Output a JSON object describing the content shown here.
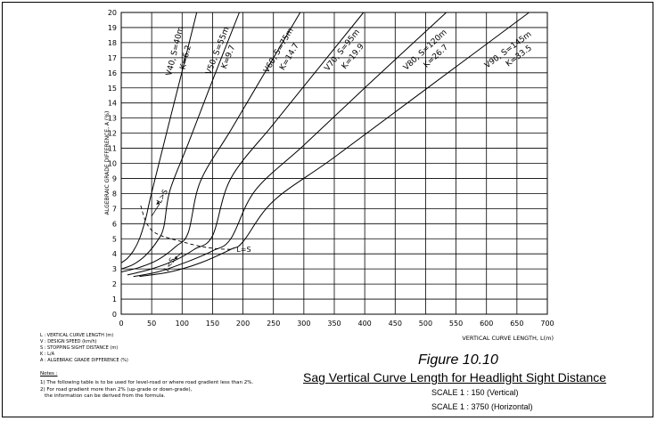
{
  "chart_data": {
    "type": "line",
    "xlabel": "VERTICAL CURVE LENGTH, L(m)",
    "ylabel": "ALGEBRAIC GRADE DIFFERENCE, A (%)",
    "xlim": [
      0,
      700
    ],
    "ylim": [
      0,
      20
    ],
    "xticks": [
      0,
      50,
      100,
      150,
      200,
      250,
      300,
      350,
      400,
      450,
      500,
      550,
      600,
      650,
      700
    ],
    "yticks": [
      0,
      1,
      2,
      3,
      4,
      5,
      6,
      7,
      8,
      9,
      10,
      11,
      12,
      13,
      14,
      15,
      16,
      17,
      18,
      19,
      20
    ],
    "grid": true,
    "series": [
      {
        "label_line1": "V40, S=40m",
        "label_line2": "K=6.2",
        "k": 6.2,
        "points": [
          [
            0,
            3.4
          ],
          [
            10,
            3.7
          ],
          [
            20,
            4.2
          ],
          [
            30,
            5.0
          ],
          [
            40,
            6.3
          ],
          [
            45,
            7.2
          ],
          [
            50,
            8.06
          ],
          [
            75,
            12.1
          ],
          [
            100,
            16.1
          ],
          [
            124,
            20
          ]
        ]
      },
      {
        "label_line1": "V50, S=55m",
        "label_line2": "K=9.7",
        "k": 9.7,
        "points": [
          [
            0,
            3.0
          ],
          [
            20,
            3.3
          ],
          [
            40,
            3.9
          ],
          [
            60,
            4.9
          ],
          [
            70,
            5.8
          ],
          [
            80,
            8.2
          ],
          [
            110,
            11.3
          ],
          [
            150,
            15.5
          ],
          [
            194,
            20
          ]
        ]
      },
      {
        "label_line1": "V60, S=75m",
        "label_line2": "K=14.7",
        "k": 14.7,
        "points": [
          [
            0,
            2.8
          ],
          [
            30,
            3.1
          ],
          [
            60,
            3.6
          ],
          [
            90,
            4.5
          ],
          [
            110,
            5.4
          ],
          [
            130,
            8.8
          ],
          [
            180,
            12.2
          ],
          [
            240,
            16.3
          ],
          [
            294,
            20
          ]
        ]
      },
      {
        "label_line1": "V70, S=95m",
        "label_line2": "K=19.9",
        "k": 19.9,
        "points": [
          [
            10,
            2.6
          ],
          [
            50,
            3.0
          ],
          [
            90,
            3.6
          ],
          [
            120,
            4.3
          ],
          [
            150,
            5.2
          ],
          [
            180,
            9.0
          ],
          [
            250,
            12.6
          ],
          [
            320,
            16.1
          ],
          [
            398,
            20
          ]
        ]
      },
      {
        "label_line1": "V80, S=120m",
        "label_line2": "K=26.7",
        "k": 26.7,
        "points": [
          [
            20,
            2.5
          ],
          [
            60,
            2.8
          ],
          [
            110,
            3.5
          ],
          [
            150,
            4.2
          ],
          [
            180,
            5.0
          ],
          [
            220,
            8.2
          ],
          [
            300,
            11.2
          ],
          [
            400,
            15.0
          ],
          [
            534,
            20
          ]
        ]
      },
      {
        "label_line1": "V90, S=145m",
        "label_line2": "K=33.5",
        "k": 33.5,
        "points": [
          [
            30,
            2.5
          ],
          [
            80,
            2.8
          ],
          [
            130,
            3.4
          ],
          [
            180,
            4.3
          ],
          [
            200,
            4.8
          ],
          [
            250,
            7.5
          ],
          [
            350,
            10.4
          ],
          [
            500,
            14.9
          ],
          [
            670,
            20
          ]
        ]
      }
    ],
    "boundary": {
      "label": "L=S",
      "points": [
        [
          32,
          7.2
        ],
        [
          42,
          6.0
        ],
        [
          60,
          5.3
        ],
        [
          100,
          4.8
        ],
        [
          130,
          4.5
        ],
        [
          155,
          4.35
        ],
        [
          175,
          4.3
        ],
        [
          185,
          4.3
        ]
      ]
    },
    "annotations": {
      "above": "L>S",
      "below": "L<S"
    }
  },
  "legend_notes": [
    "L : VERTICAL CURVE LENGTH (m)",
    "V : DESIGN SPEED (km/h)",
    "S : STOPPING SIGHT DISTANCE (m)",
    "K : L/A",
    "A : ALGEBRAIC GRADE DIFFERENCE (%)"
  ],
  "notes_title": "Notes :",
  "notes": [
    "1) The following table is to be used for level-road or where road gradient less than 2%.",
    "2) For road gradient more than 2% (up-grade or down-grade),",
    "the information can be derived from the formula."
  ],
  "figure_number": "Figure 10.10",
  "figure_title": "Sag Vertical Curve Length for Headlight Sight Distance",
  "scales": [
    "SCALE 1 : 150 (Vertical)",
    "SCALE 1 : 3750 (Horizontal)"
  ]
}
